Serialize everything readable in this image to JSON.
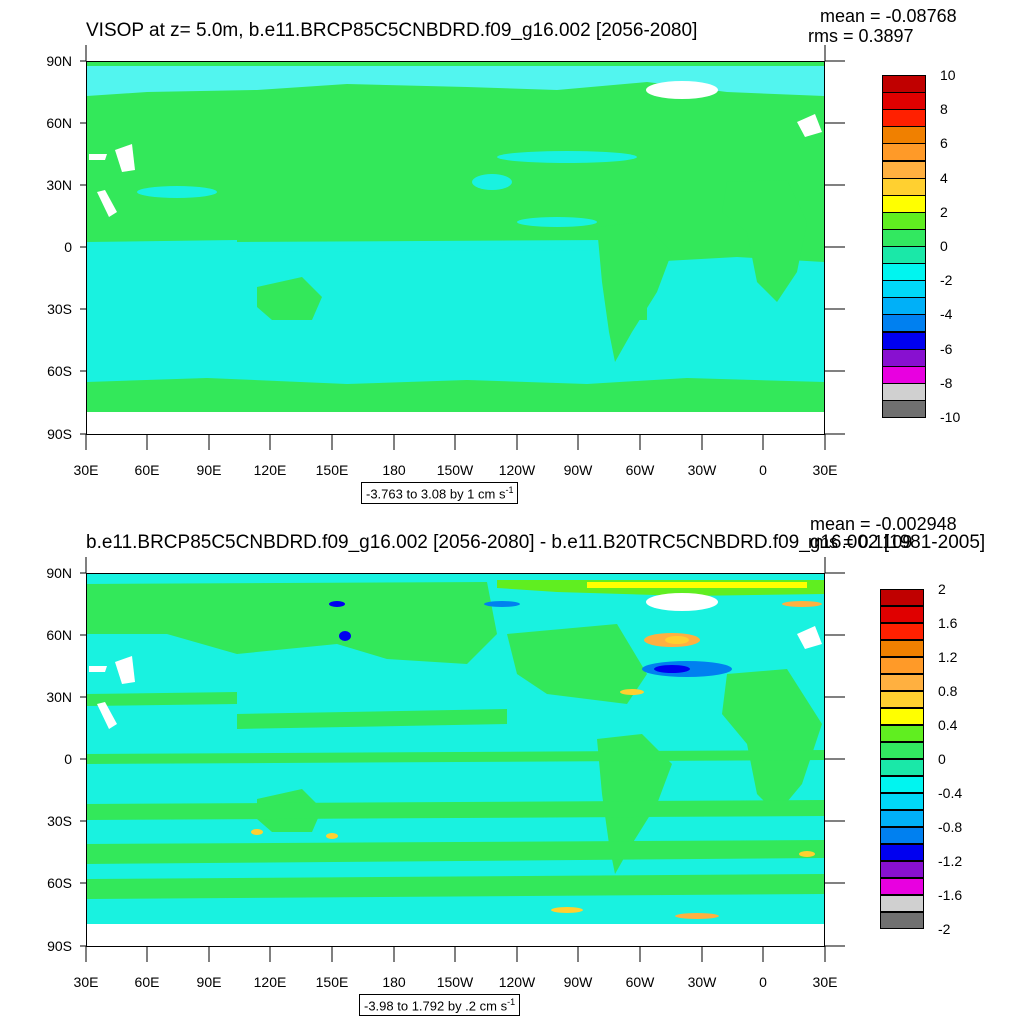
{
  "panels": [
    {
      "title": "VISOP at z=   5.0m, b.e11.BRCP85C5CNBDRD.f09_g16.002 [2056-2080]",
      "mean": "mean = -0.08768",
      "rms": "rms = 0.3897",
      "range_note": "-3.763 to 3.08 by 1 cm s",
      "range_sup": "-1",
      "lat_labels": [
        "90N",
        "60N",
        "30N",
        "0",
        "30S",
        "60S",
        "90S"
      ],
      "lon_labels": [
        "30E",
        "60E",
        "90E",
        "120E",
        "150E",
        "180",
        "150W",
        "120W",
        "90W",
        "60W",
        "30W",
        "0",
        "30E"
      ],
      "colorbar_labels": [
        "10",
        "8",
        "6",
        "4",
        "2",
        "0",
        "-2",
        "-4",
        "-6",
        "-8",
        "-10"
      ]
    },
    {
      "title": "b.e11.BRCP85C5CNBDRD.f09_g16.002 [2056-2080] - b.e11.B20TRC5CNBDRD.f09_g16.002 [1981-2005]",
      "mean": "mean = -0.002948",
      "rms": "rms = 0.1109",
      "range_note": "-3.98 to 1.792 by .2 cm s",
      "range_sup": "-1",
      "lat_labels": [
        "90N",
        "60N",
        "30N",
        "0",
        "30S",
        "60S",
        "90S"
      ],
      "lon_labels": [
        "30E",
        "60E",
        "90E",
        "120E",
        "150E",
        "180",
        "150W",
        "120W",
        "90W",
        "60W",
        "30W",
        "0",
        "30E"
      ],
      "colorbar_labels": [
        "2",
        "1.6",
        "1.2",
        "0.8",
        "0.4",
        "0",
        "-0.4",
        "-0.8",
        "-1.2",
        "-1.6",
        "-2"
      ]
    }
  ],
  "colors": {
    "land_green": "#33e85a",
    "ocean_cyan": "#19f2e0",
    "ocean_light": "#52f5ef",
    "colorbar": [
      "#c00000",
      "#e00000",
      "#ff2000",
      "#f08000",
      "#ff9a28",
      "#ffb040",
      "#ffd030",
      "#ffff00",
      "#60ee20",
      "#32e860",
      "#1ae8a8",
      "#00f5f0",
      "#00d8f8",
      "#00b0f8",
      "#0080f0",
      "#0000f0",
      "#8810d0",
      "#e800e0",
      "#d0d0d0",
      "#707070"
    ]
  }
}
